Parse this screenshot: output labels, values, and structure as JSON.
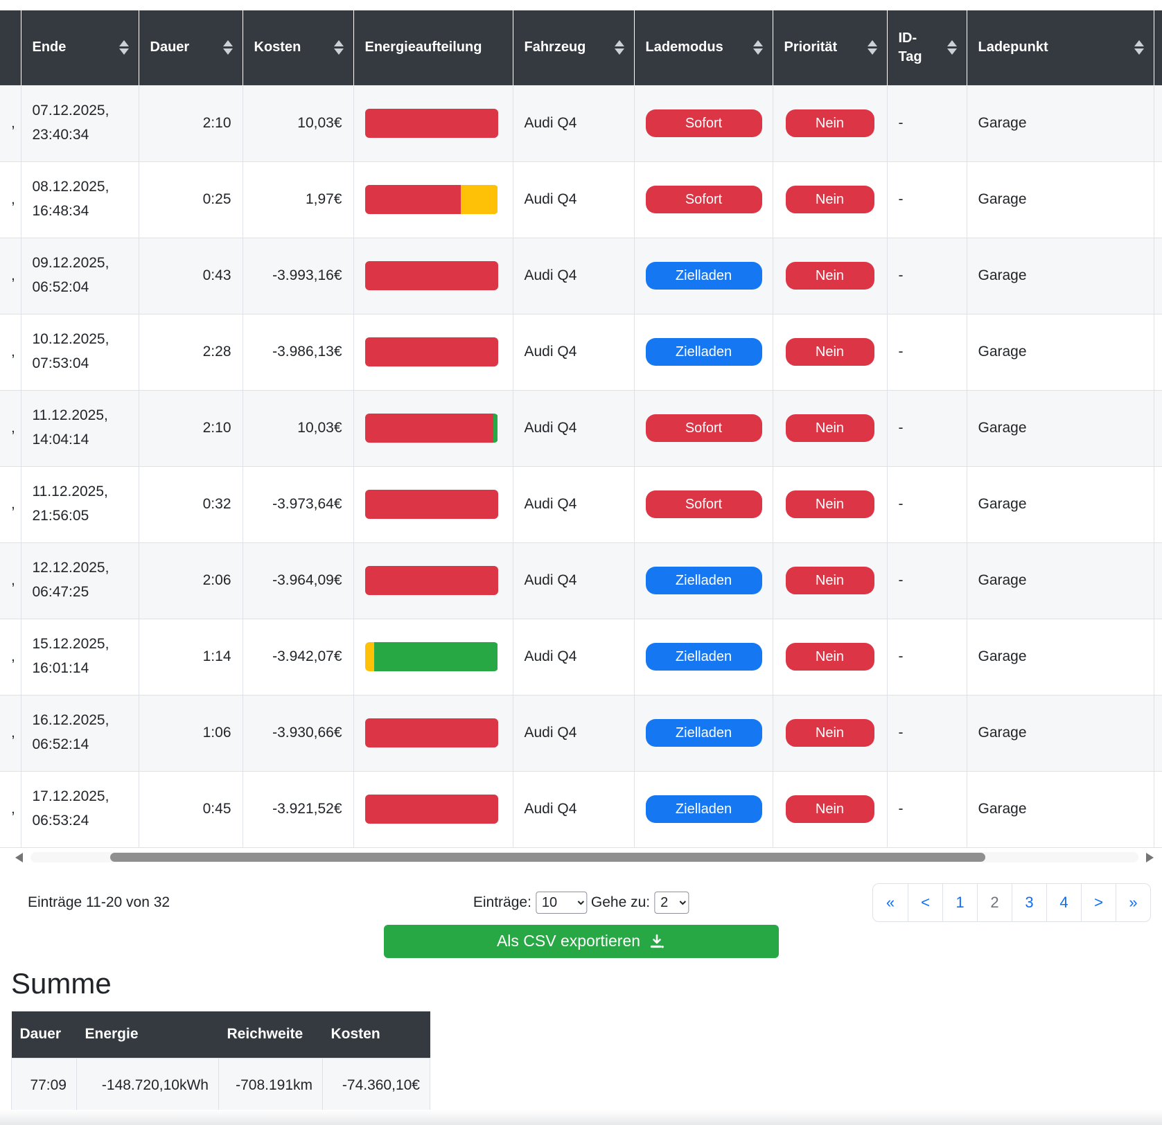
{
  "colors": {
    "red": "#dc3545",
    "yellow": "#ffc107",
    "green": "#28a745",
    "blue": "#1577f2",
    "header_bg": "#343a40",
    "link": "#0d6efd",
    "export_green": "#28a745"
  },
  "table": {
    "columns": [
      {
        "label": "",
        "sortable": false
      },
      {
        "label": "Ende",
        "sortable": true
      },
      {
        "label": "Dauer",
        "sortable": true
      },
      {
        "label": "Kosten",
        "sortable": true
      },
      {
        "label": "Energieaufteilung",
        "sortable": false
      },
      {
        "label": "Fahrzeug",
        "sortable": true
      },
      {
        "label": "Lademodus",
        "sortable": true
      },
      {
        "label": "Priorität",
        "sortable": true
      },
      {
        "label": "ID-Tag",
        "sortable": true
      },
      {
        "label": "Ladepunkt",
        "sortable": true
      },
      {
        "label": "",
        "sortable": false
      }
    ],
    "rows": [
      {
        "start_overflow": ",",
        "ende": "07.12.2025, 23:40:34",
        "dauer": "2:10",
        "kosten": "10,03€",
        "energy": [
          {
            "color": "red",
            "pct": 100
          }
        ],
        "fahrzeug": "Audi Q4",
        "lademodus": "Sofort",
        "mode_color": "red",
        "prioritaet": "Nein",
        "id_tag": "-",
        "ladepunkt": "Garage"
      },
      {
        "start_overflow": ",",
        "ende": "08.12.2025, 16:48:34",
        "dauer": "0:25",
        "kosten": "1,97€",
        "energy": [
          {
            "color": "red",
            "pct": 72
          },
          {
            "color": "yellow",
            "pct": 28
          }
        ],
        "fahrzeug": "Audi Q4",
        "lademodus": "Sofort",
        "mode_color": "red",
        "prioritaet": "Nein",
        "id_tag": "-",
        "ladepunkt": "Garage"
      },
      {
        "start_overflow": ",",
        "ende": "09.12.2025, 06:52:04",
        "dauer": "0:43",
        "kosten": "-3.993,16€",
        "energy": [
          {
            "color": "red",
            "pct": 100
          }
        ],
        "fahrzeug": "Audi Q4",
        "lademodus": "Zielladen",
        "mode_color": "blue",
        "prioritaet": "Nein",
        "id_tag": "-",
        "ladepunkt": "Garage"
      },
      {
        "start_overflow": ",",
        "ende": "10.12.2025, 07:53:04",
        "dauer": "2:28",
        "kosten": "-3.986,13€",
        "energy": [
          {
            "color": "red",
            "pct": 100
          }
        ],
        "fahrzeug": "Audi Q4",
        "lademodus": "Zielladen",
        "mode_color": "blue",
        "prioritaet": "Nein",
        "id_tag": "-",
        "ladepunkt": "Garage"
      },
      {
        "start_overflow": ",",
        "ende": "11.12.2025, 14:04:14",
        "dauer": "2:10",
        "kosten": "10,03€",
        "energy": [
          {
            "color": "red",
            "pct": 96.5
          },
          {
            "color": "green",
            "pct": 3.5
          }
        ],
        "fahrzeug": "Audi Q4",
        "lademodus": "Sofort",
        "mode_color": "red",
        "prioritaet": "Nein",
        "id_tag": "-",
        "ladepunkt": "Garage"
      },
      {
        "start_overflow": ",",
        "ende": "11.12.2025, 21:56:05",
        "dauer": "0:32",
        "kosten": "-3.973,64€",
        "energy": [
          {
            "color": "red",
            "pct": 100
          }
        ],
        "fahrzeug": "Audi Q4",
        "lademodus": "Sofort",
        "mode_color": "red",
        "prioritaet": "Nein",
        "id_tag": "-",
        "ladepunkt": "Garage"
      },
      {
        "start_overflow": ",",
        "ende": "12.12.2025, 06:47:25",
        "dauer": "2:06",
        "kosten": "-3.964,09€",
        "energy": [
          {
            "color": "red",
            "pct": 100
          }
        ],
        "fahrzeug": "Audi Q4",
        "lademodus": "Zielladen",
        "mode_color": "blue",
        "prioritaet": "Nein",
        "id_tag": "-",
        "ladepunkt": "Garage"
      },
      {
        "start_overflow": ",",
        "ende": "15.12.2025, 16:01:14",
        "dauer": "1:14",
        "kosten": "-3.942,07€",
        "energy": [
          {
            "color": "yellow",
            "pct": 7
          },
          {
            "color": "green",
            "pct": 93
          }
        ],
        "fahrzeug": "Audi Q4",
        "lademodus": "Zielladen",
        "mode_color": "blue",
        "prioritaet": "Nein",
        "id_tag": "-",
        "ladepunkt": "Garage"
      },
      {
        "start_overflow": ",",
        "ende": "16.12.2025, 06:52:14",
        "dauer": "1:06",
        "kosten": "-3.930,66€",
        "energy": [
          {
            "color": "red",
            "pct": 100
          }
        ],
        "fahrzeug": "Audi Q4",
        "lademodus": "Zielladen",
        "mode_color": "blue",
        "prioritaet": "Nein",
        "id_tag": "-",
        "ladepunkt": "Garage"
      },
      {
        "start_overflow": ",",
        "ende": "17.12.2025, 06:53:24",
        "dauer": "0:45",
        "kosten": "-3.921,52€",
        "energy": [
          {
            "color": "red",
            "pct": 100
          }
        ],
        "fahrzeug": "Audi Q4",
        "lademodus": "Zielladen",
        "mode_color": "blue",
        "prioritaet": "Nein",
        "id_tag": "-",
        "ladepunkt": "Garage"
      }
    ]
  },
  "pagination": {
    "info": "Einträge 11-20 von 32",
    "entries_label": "Einträge:",
    "entries_value": "10",
    "goto_label": "Gehe zu:",
    "goto_value": "2",
    "items": [
      {
        "label": "«",
        "current": false
      },
      {
        "label": "<",
        "current": false
      },
      {
        "label": "1",
        "current": false
      },
      {
        "label": "2",
        "current": true
      },
      {
        "label": "3",
        "current": false
      },
      {
        "label": "4",
        "current": false
      },
      {
        "label": ">",
        "current": false
      },
      {
        "label": "»",
        "current": false
      }
    ]
  },
  "export_button": {
    "label": "Als CSV exportieren",
    "icon": "download-icon"
  },
  "summary": {
    "title": "Summe",
    "columns": [
      "Dauer",
      "Energie",
      "Reichweite",
      "Kosten"
    ],
    "values": [
      "77:09",
      "-148.720,10kWh",
      "-708.191km",
      "-74.360,10€"
    ]
  }
}
